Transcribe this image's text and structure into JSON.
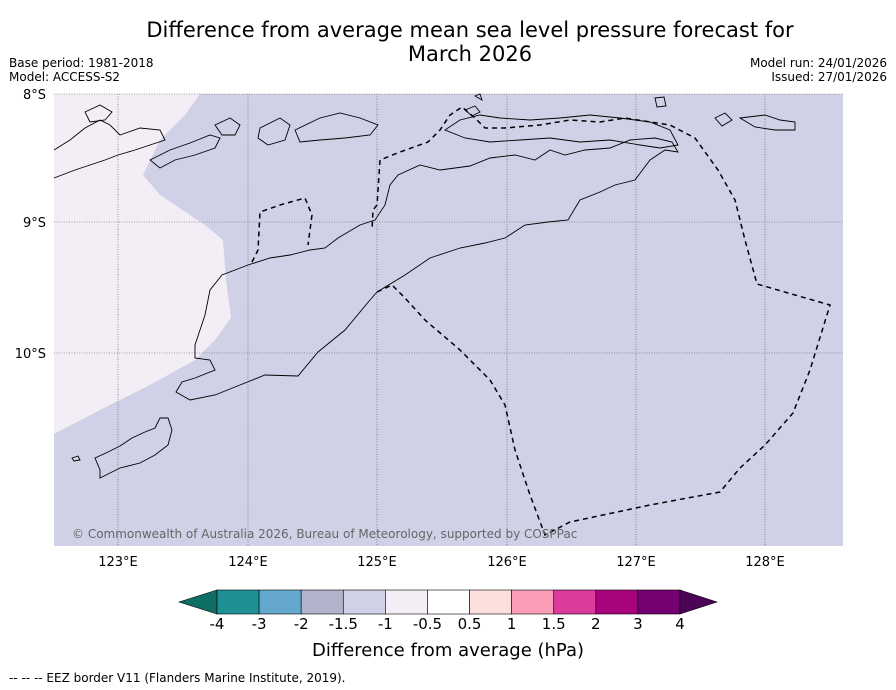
{
  "title": "Difference from average mean sea level pressure forecast for March 2026",
  "title_line1": "Difference from average mean sea level pressure forecast for",
  "title_line2": "March 2026",
  "meta": {
    "base_period": "Base period: 1981-2018",
    "model": "Model: ACCESS-S2",
    "model_run": "Model run: 24/01/2026",
    "issued": "Issued: 27/01/2026"
  },
  "map": {
    "lat_labels": [
      "8°S",
      "9°S",
      "10°S"
    ],
    "lon_labels": [
      "123°E",
      "124°E",
      "125°E",
      "126°E",
      "127°E",
      "128°E"
    ],
    "copyright": "© Commonwealth of Australia 2026, Bureau of Meteorology, supported by COSPPac",
    "colors": {
      "ocean_main": "#d0d0e6",
      "ocean_west": "#f3edf6",
      "land_outline": "#000000"
    }
  },
  "colorbar": {
    "labels": [
      "-4",
      "-3",
      "-2",
      "-1.5",
      "-1",
      "-0.5",
      "0.5",
      "1",
      "1.5",
      "2",
      "3",
      "4"
    ],
    "colors": [
      "#0f6e63",
      "#1f9196",
      "#64a8cd",
      "#b0b3ca",
      "#d0d0e6",
      "#f3edf6",
      "#ffffff",
      "#fde0dd",
      "#f99db6",
      "#dc3a9c",
      "#a7037a",
      "#75006f",
      "#4a0557"
    ],
    "title": "Difference from average (hPa)"
  },
  "footnote": "--  --  -- EEZ border V11 (Flanders Marine Institute, 2019)."
}
